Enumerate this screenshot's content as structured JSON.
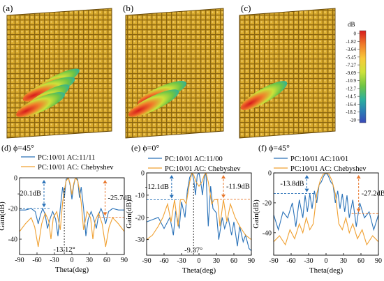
{
  "panels_top": [
    {
      "label": "(a)"
    },
    {
      "label": "(b)"
    },
    {
      "label": "(c)"
    }
  ],
  "colorbar": {
    "unit": "dB",
    "ticks": [
      "0",
      "-1.82",
      "-3.64",
      "-5.45",
      "-7.27",
      "-9.09",
      "-10.9",
      "-12.7",
      "-14.5",
      "-16.4",
      "-18.2",
      "-20"
    ],
    "colors": [
      "#d7191c",
      "#f07c2a",
      "#f9c93a",
      "#cde23a",
      "#6ec544",
      "#2bb09e",
      "#2c7bb6",
      "#3a48b8"
    ]
  },
  "colors": {
    "panel_fill": "#d5a52a",
    "panel_dark": "#8a6510",
    "series_blue": "#2a72b8",
    "series_orange": "#f0a030",
    "annot_blue": "#2a72b8",
    "annot_orange": "#e8782e"
  },
  "chart_data": [
    {
      "type": "line",
      "label": "(d) ϕ=45°",
      "xlabel": "Theta(deg)",
      "ylabel": "Gain(dB)",
      "xlim": [
        -90,
        90
      ],
      "ylim": [
        -50,
        0
      ],
      "xticks": [
        -90,
        -60,
        -30,
        0,
        30,
        60,
        90
      ],
      "yticks": [
        0,
        -20,
        -40
      ],
      "series": [
        {
          "name": "PC:10/01 AC:11/11",
          "color": "#2a72b8",
          "x": [
            -90,
            -80,
            -70,
            -63,
            -58,
            -54,
            -50,
            -46,
            -42,
            -37,
            -33,
            -28,
            -24,
            -20,
            -16,
            -13,
            -10,
            -6,
            -3,
            0,
            3,
            6,
            10,
            13,
            16,
            20,
            24,
            28,
            33,
            37,
            42,
            46,
            50,
            54,
            58,
            63,
            70,
            80,
            90
          ],
          "y": [
            -21,
            -21,
            -20,
            -22,
            -30,
            -24,
            -20,
            -24,
            -33,
            -26,
            -22,
            -27,
            -38,
            -20,
            -6,
            -13,
            -1,
            0,
            -5,
            -14,
            -5,
            0,
            -1,
            -13,
            -6,
            -20,
            -38,
            -27,
            -22,
            -26,
            -33,
            -24,
            -20,
            -24,
            -30,
            -22,
            -20,
            -21,
            -21
          ]
        },
        {
          "name": "PC:10/01 AC: Chebyshev",
          "color": "#f0a030",
          "x": [
            -90,
            -80,
            -70,
            -64,
            -58,
            -52,
            -46,
            -40,
            -36,
            -32,
            -26,
            -20,
            -16,
            -13,
            -10,
            -6,
            -3,
            0,
            3,
            6,
            10,
            13,
            16,
            20,
            26,
            32,
            36,
            40,
            46,
            52,
            58,
            64,
            70,
            80,
            90
          ],
          "y": [
            -35,
            -30,
            -26,
            -32,
            -45,
            -30,
            -23,
            -28,
            -40,
            -26,
            -22,
            -34,
            -16,
            -8,
            -2,
            0,
            -4,
            -11,
            -4,
            0,
            -2,
            -8,
            -16,
            -34,
            -22,
            -26,
            -40,
            -28,
            -23,
            -30,
            -45,
            -32,
            -26,
            -30,
            -35
          ]
        }
      ],
      "annotations": [
        {
          "text": "-20.1dB",
          "color": "#2a72b8",
          "x": -48,
          "y_top": 0,
          "y_bottom": -20.1
        },
        {
          "text": "-25.7dB",
          "color": "#e8782e",
          "x": 57,
          "y_top": 0,
          "y_bottom": -25.7
        },
        {
          "text": "-13.12°",
          "color": "#000000",
          "x": -13.12
        }
      ]
    },
    {
      "type": "line",
      "label": "(e) ϕ=0°",
      "xlabel": "Theta(deg)",
      "ylabel": "Gain(dB)",
      "xlim": [
        -90,
        90
      ],
      "ylim": [
        -37,
        0
      ],
      "xticks": [
        -90,
        -60,
        -30,
        0,
        30,
        60,
        90
      ],
      "yticks": [
        0,
        -10,
        -20,
        -30
      ],
      "series": [
        {
          "name": "PC:10/01 AC:11/00",
          "color": "#2a72b8",
          "x": [
            -90,
            -80,
            -70,
            -60,
            -50,
            -44,
            -40,
            -34,
            -30,
            -24,
            -20,
            -16,
            -12,
            -9,
            -6,
            -3,
            0,
            3,
            6,
            9,
            12,
            16,
            20,
            24,
            30,
            34,
            40,
            44,
            50,
            56,
            60,
            66,
            70,
            76,
            80,
            86,
            90
          ],
          "y": [
            -22,
            -21,
            -20,
            -25,
            -20,
            -28,
            -17,
            -25,
            -13,
            -20,
            -8,
            -2,
            0,
            -3,
            -10,
            -1,
            0,
            -4,
            -10,
            -2,
            0,
            -24,
            -6,
            -16,
            -18,
            -30,
            -20,
            -25,
            -20,
            -28,
            -22,
            -33,
            -24,
            -31,
            -28,
            -34,
            -35
          ]
        },
        {
          "name": "PC:10/01 AC: Chebyshev",
          "color": "#f0a030",
          "x": [
            -90,
            -80,
            -70,
            -62,
            -54,
            -48,
            -42,
            -36,
            -32,
            -26,
            -22,
            -16,
            -12,
            -9,
            -5,
            0,
            5,
            9,
            12,
            16,
            22,
            26,
            32,
            36,
            42,
            48,
            54,
            62,
            70,
            80,
            90
          ],
          "y": [
            -30,
            -28,
            -24,
            -20,
            -14,
            -22,
            -12,
            -24,
            -12,
            -12,
            -14,
            -4,
            0,
            -1,
            -4,
            -6,
            -4,
            -1,
            0,
            -4,
            -14,
            -12,
            -12,
            -24,
            -12,
            -22,
            -14,
            -20,
            -24,
            -28,
            -30
          ]
        }
      ],
      "annotations": [
        {
          "text": "-12.1dB",
          "color": "#2a72b8",
          "x": -47,
          "y_top": 0,
          "y_bottom": -12.1
        },
        {
          "text": "-11.9dB",
          "color": "#e8782e",
          "x": 42,
          "y_top": 0,
          "y_bottom": -11.9
        },
        {
          "text": "-9.37°",
          "color": "#000000",
          "x": -9.37
        }
      ]
    },
    {
      "type": "line",
      "label": "(f) ϕ=45°",
      "xlabel": "Theta(deg)",
      "ylabel": "Gain(dB)",
      "xlim": [
        -90,
        90
      ],
      "ylim": [
        -55,
        0
      ],
      "xticks": [
        -90,
        -60,
        -30,
        0,
        30,
        60,
        90
      ],
      "yticks": [
        0,
        -20,
        -40
      ],
      "series": [
        {
          "name": "PC:10/01 AC:10/01",
          "color": "#2a72b8",
          "x": [
            -90,
            -82,
            -74,
            -66,
            -58,
            -52,
            -46,
            -40,
            -36,
            -32,
            -28,
            -24,
            -20,
            -16,
            -12,
            -8,
            -4,
            0,
            4,
            8,
            12,
            16,
            20,
            24,
            28,
            32,
            36,
            40,
            46,
            52,
            58,
            66,
            74,
            82,
            90
          ],
          "y": [
            -28,
            -38,
            -26,
            -30,
            -20,
            -36,
            -18,
            -30,
            -15,
            -26,
            -14,
            -24,
            -12,
            -20,
            -8,
            -6,
            -2,
            0,
            -2,
            -6,
            -8,
            -20,
            -12,
            -24,
            -14,
            -26,
            -15,
            -30,
            -18,
            -36,
            -20,
            -30,
            -26,
            -38,
            -28
          ]
        },
        {
          "name": "PC:10/01 AC: Chebyshev",
          "color": "#f0a030",
          "x": [
            -90,
            -80,
            -70,
            -62,
            -54,
            -46,
            -40,
            -34,
            -28,
            -22,
            -16,
            -10,
            -5,
            0,
            5,
            10,
            16,
            22,
            28,
            34,
            40,
            46,
            54,
            62,
            70,
            80,
            90
          ],
          "y": [
            -46,
            -42,
            -48,
            -38,
            -44,
            -34,
            -40,
            -30,
            -38,
            -34,
            -14,
            -5,
            -1,
            0,
            -1,
            -5,
            -14,
            -34,
            -38,
            -30,
            -40,
            -34,
            -44,
            -38,
            -48,
            -42,
            -46
          ]
        }
      ],
      "annotations": [
        {
          "text": "-13.8dB",
          "color": "#2a72b8",
          "x": -33,
          "y_top": 0,
          "y_bottom": -13.8
        },
        {
          "text": "-27.2dB",
          "color": "#e8782e",
          "x": 56,
          "y_top": 0,
          "y_bottom": -27.2
        }
      ]
    }
  ]
}
